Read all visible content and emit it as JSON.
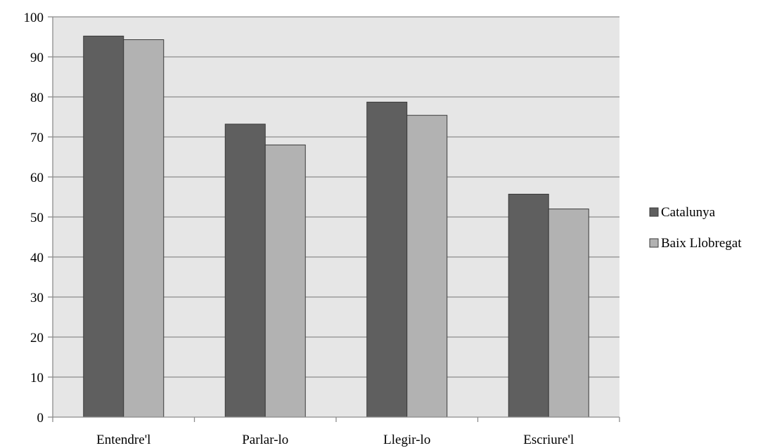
{
  "chart_data": {
    "type": "bar",
    "categories": [
      "Entendre'l",
      "Parlar-lo",
      "Llegir-lo",
      "Escriure'l"
    ],
    "series": [
      {
        "name": "Catalunya",
        "color": "#5f5f5f",
        "values": [
          95.2,
          73.2,
          78.7,
          55.7
        ]
      },
      {
        "name": "Baix Llobregat",
        "color": "#b2b2b2",
        "values": [
          94.3,
          68.0,
          75.4,
          52.0
        ]
      }
    ],
    "title": "",
    "xlabel": "",
    "ylabel": "",
    "ylim": [
      0,
      100
    ],
    "yticks": [
      0,
      10,
      20,
      30,
      40,
      50,
      60,
      70,
      80,
      90,
      100
    ],
    "grid": true,
    "legend_position": "right",
    "plot_background": "#e6e6e6"
  }
}
